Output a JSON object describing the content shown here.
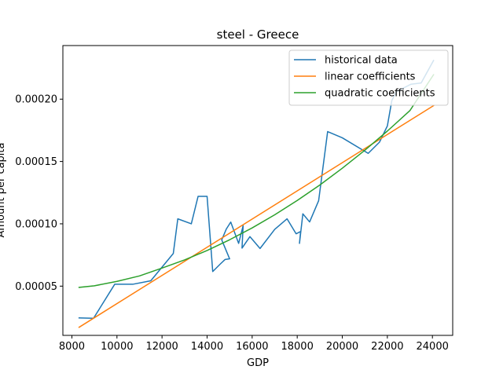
{
  "chart_data": {
    "type": "line",
    "title": "steel - Greece",
    "xlabel": "GDP",
    "ylabel": "Amount per capita",
    "xlim": [
      7600,
      24900
    ],
    "ylim": [
      1.05e-05,
      0.000243
    ],
    "xticks": [
      8000,
      10000,
      12000,
      14000,
      16000,
      18000,
      20000,
      22000,
      24000
    ],
    "xtick_labels": [
      "8000",
      "10000",
      "12000",
      "14000",
      "16000",
      "18000",
      "20000",
      "22000",
      "24000"
    ],
    "yticks": [
      5e-05,
      0.0001,
      0.00015,
      0.0002
    ],
    "ytick_labels": [
      "0.00005",
      "0.00010",
      "0.00015",
      "0.00020"
    ],
    "grid": false,
    "legend_position": "top-right",
    "series": [
      {
        "name": "historical data",
        "color": "#1f77b4",
        "x": [
          8320,
          8960,
          9900,
          10700,
          11500,
          12500,
          12700,
          13300,
          13600,
          14000,
          14250,
          14600,
          14800,
          15000,
          14650,
          14850,
          15050,
          15400,
          15600,
          15550,
          15900,
          16350,
          17000,
          17550,
          17950,
          18150,
          18100,
          18250,
          18550,
          18950,
          19350,
          20000,
          21150,
          21650,
          22000,
          22200,
          22400,
          23050,
          23500,
          24050
        ],
        "y": [
          2.45e-05,
          2.42e-05,
          5.15e-05,
          5.15e-05,
          5.43e-05,
          7.62e-05,
          0.000104,
          0.0001,
          0.000122,
          0.000122,
          6.17e-05,
          6.8e-05,
          7.14e-05,
          7.19e-05,
          8.71e-05,
          9.57e-05,
          0.0001014,
          8.43e-05,
          9.85e-05,
          8.05e-05,
          8.97e-05,
          8.02e-05,
          9.55e-05,
          0.000104,
          9.2e-05,
          9.38e-05,
          8.43e-05,
          0.000108,
          0.0001015,
          0.0001185,
          0.000174,
          0.000169,
          0.0001565,
          0.0001655,
          0.0001785,
          0.000199,
          0.000206,
          0.000212,
          0.000213,
          0.000231
        ]
      },
      {
        "name": "linear coefficients",
        "color": "#ff7f0e",
        "x": [
          8320,
          24050
        ],
        "y": [
          1.7e-05,
          0.0001948
        ]
      },
      {
        "name": "quadratic coefficients",
        "color": "#2ca02c",
        "x": [
          8320,
          9000,
          10000,
          11000,
          12000,
          13000,
          14000,
          15000,
          16000,
          17000,
          18000,
          19000,
          20000,
          21000,
          22000,
          23000,
          24050
        ],
        "y": [
          4.9e-05,
          5.03e-05,
          5.38e-05,
          5.82e-05,
          6.45e-05,
          7.1e-05,
          7.86e-05,
          8.72e-05,
          9.67e-05,
          0.0001072,
          0.0001187,
          0.0001311,
          0.0001446,
          0.000159,
          0.0001744,
          0.0001908,
          0.0002196
        ]
      }
    ]
  }
}
